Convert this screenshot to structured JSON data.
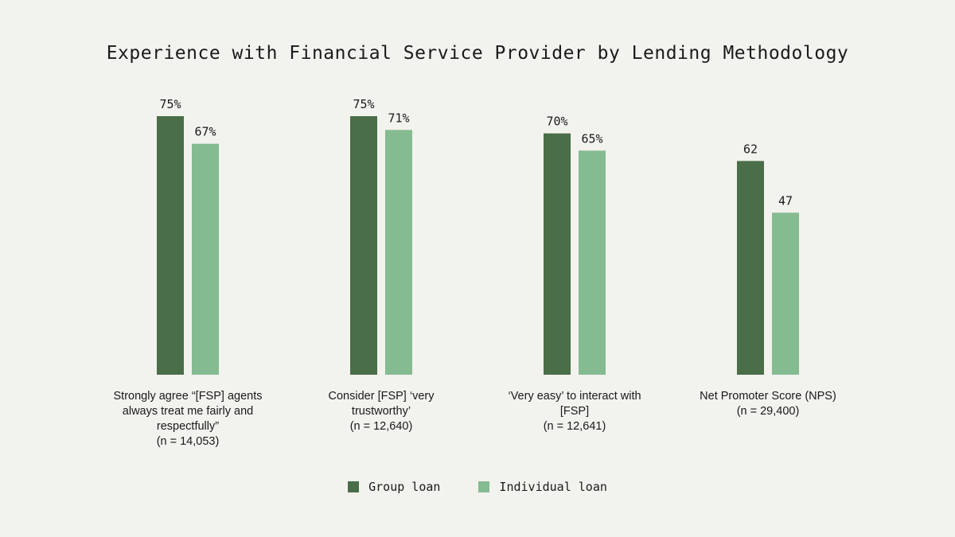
{
  "chart_data": {
    "type": "bar",
    "title": "Experience with Financial Service Provider by Lending Methodology",
    "categories": [
      {
        "lines": [
          "Strongly agree “[FSP] agents",
          "always treat me fairly and",
          "respectfully”",
          "(n = 14,053)"
        ]
      },
      {
        "lines": [
          "Consider [FSP] ‘very",
          "trustworthy’",
          "(n = 12,640)"
        ]
      },
      {
        "lines": [
          "‘Very easy’ to interact with",
          "[FSP]",
          "(n = 12,641)"
        ]
      },
      {
        "lines": [
          "Net Promoter Score (NPS)",
          "(n = 29,400)"
        ]
      }
    ],
    "series": [
      {
        "name": "Group loan",
        "color": "#4a6e48",
        "values": [
          75,
          75,
          70,
          62
        ],
        "labels": [
          "75%",
          "75%",
          "70%",
          "62"
        ]
      },
      {
        "name": "Individual loan",
        "color": "#85bb91",
        "values": [
          67,
          71,
          65,
          47
        ],
        "labels": [
          "67%",
          "71%",
          "65%",
          "47"
        ]
      }
    ],
    "ylim": [
      0,
      75
    ],
    "grid": false,
    "legend": "bottom-center",
    "xlabel": "",
    "ylabel": ""
  }
}
